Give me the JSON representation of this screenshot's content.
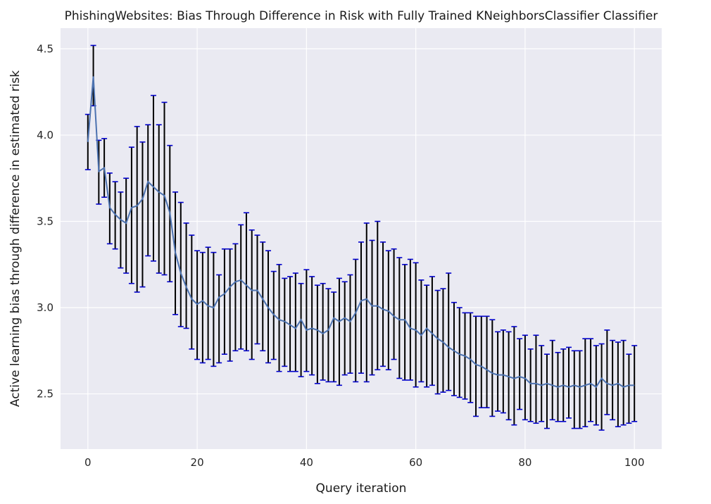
{
  "chart_data": {
    "type": "line",
    "title": "PhishingWebsites: Bias Through Difference in Risk with Fully Trained KNeighborsClassifier Classifier",
    "xlabel": "Query iteration",
    "ylabel": "Active learning bias through difference in estimated risk",
    "xlim": [
      -5,
      105
    ],
    "ylim": [
      2.18,
      4.62
    ],
    "x_ticks": [
      0,
      20,
      40,
      60,
      80,
      100
    ],
    "y_ticks": [
      2.5,
      3.0,
      3.5,
      4.0,
      4.5
    ],
    "x_tick_labels": [
      "0",
      "20",
      "40",
      "60",
      "80",
      "100"
    ],
    "y_tick_labels": [
      "2.5",
      "3.0",
      "3.5",
      "4.0",
      "4.5"
    ],
    "grid": true,
    "legend": "none",
    "colors": {
      "background": "#eaeaf2",
      "grid": "#ffffff",
      "line": "#4c72b0",
      "errorbar": "#000000",
      "caps": "#0000cc"
    },
    "series": [
      {
        "x": [
          0,
          1,
          2,
          3,
          4,
          5,
          6,
          7,
          8,
          9,
          10,
          11,
          12,
          13,
          14,
          15,
          16,
          17,
          18,
          19,
          20,
          21,
          22,
          23,
          24,
          25,
          26,
          27,
          28,
          29,
          30,
          31,
          32,
          33,
          34,
          35,
          36,
          37,
          38,
          39,
          40,
          41,
          42,
          43,
          44,
          45,
          46,
          47,
          48,
          49,
          50,
          51,
          52,
          53,
          54,
          55,
          56,
          57,
          58,
          59,
          60,
          61,
          62,
          63,
          64,
          65,
          66,
          67,
          68,
          69,
          70,
          71,
          72,
          73,
          74,
          75,
          76,
          77,
          78,
          79,
          80,
          81,
          82,
          83,
          84,
          85,
          86,
          87,
          88,
          89,
          90,
          91,
          92,
          93,
          94,
          95,
          96,
          97,
          98,
          99,
          100
        ],
        "y": [
          3.96,
          4.34,
          3.79,
          3.81,
          3.58,
          3.54,
          3.51,
          3.49,
          3.58,
          3.59,
          3.63,
          3.73,
          3.7,
          3.67,
          3.65,
          3.55,
          3.32,
          3.2,
          3.12,
          3.05,
          3.02,
          3.04,
          3.01,
          3.0,
          3.06,
          3.08,
          3.12,
          3.15,
          3.16,
          3.13,
          3.1,
          3.1,
          3.05,
          3.0,
          2.96,
          2.93,
          2.92,
          2.9,
          2.88,
          2.93,
          2.87,
          2.88,
          2.87,
          2.85,
          2.87,
          2.94,
          2.92,
          2.94,
          2.92,
          2.97,
          3.04,
          3.05,
          3.01,
          3.01,
          2.99,
          2.98,
          2.95,
          2.93,
          2.93,
          2.88,
          2.87,
          2.84,
          2.88,
          2.85,
          2.82,
          2.8,
          2.77,
          2.75,
          2.73,
          2.72,
          2.7,
          2.67,
          2.66,
          2.64,
          2.62,
          2.61,
          2.61,
          2.6,
          2.59,
          2.6,
          2.59,
          2.56,
          2.56,
          2.55,
          2.56,
          2.55,
          2.54,
          2.55,
          2.54,
          2.55,
          2.54,
          2.55,
          2.56,
          2.54,
          2.59,
          2.56,
          2.55,
          2.56,
          2.54,
          2.55,
          2.55
        ],
        "lower": [
          3.8,
          4.17,
          3.6,
          3.64,
          3.37,
          3.34,
          3.23,
          3.2,
          3.14,
          3.09,
          3.12,
          3.3,
          3.27,
          3.2,
          3.19,
          3.15,
          2.96,
          2.89,
          2.88,
          2.76,
          2.7,
          2.68,
          2.7,
          2.66,
          2.68,
          2.73,
          2.69,
          2.75,
          2.76,
          2.75,
          2.7,
          2.79,
          2.75,
          2.68,
          2.7,
          2.63,
          2.66,
          2.63,
          2.63,
          2.6,
          2.63,
          2.61,
          2.56,
          2.58,
          2.57,
          2.57,
          2.55,
          2.61,
          2.62,
          2.57,
          2.62,
          2.57,
          2.61,
          2.64,
          2.66,
          2.64,
          2.7,
          2.59,
          2.58,
          2.58,
          2.54,
          2.57,
          2.54,
          2.55,
          2.5,
          2.51,
          2.52,
          2.49,
          2.48,
          2.47,
          2.45,
          2.37,
          2.42,
          2.42,
          2.37,
          2.4,
          2.39,
          2.35,
          2.32,
          2.41,
          2.35,
          2.34,
          2.33,
          2.34,
          2.3,
          2.35,
          2.34,
          2.34,
          2.36,
          2.3,
          2.3,
          2.31,
          2.34,
          2.32,
          2.29,
          2.38,
          2.35,
          2.31,
          2.32,
          2.33,
          2.34
        ],
        "upper": [
          4.12,
          4.52,
          3.97,
          3.98,
          3.78,
          3.73,
          3.67,
          3.75,
          3.93,
          4.05,
          3.96,
          4.06,
          4.23,
          4.06,
          4.19,
          3.94,
          3.67,
          3.61,
          3.49,
          3.42,
          3.33,
          3.32,
          3.35,
          3.32,
          3.19,
          3.34,
          3.34,
          3.37,
          3.48,
          3.55,
          3.45,
          3.42,
          3.38,
          3.33,
          3.21,
          3.25,
          3.17,
          3.18,
          3.2,
          3.14,
          3.22,
          3.18,
          3.13,
          3.14,
          3.11,
          3.09,
          3.17,
          3.15,
          3.19,
          3.28,
          3.38,
          3.49,
          3.39,
          3.5,
          3.38,
          3.33,
          3.34,
          3.29,
          3.25,
          3.28,
          3.26,
          3.16,
          3.13,
          3.18,
          3.1,
          3.11,
          3.2,
          3.03,
          3.0,
          2.97,
          2.97,
          2.95,
          2.95,
          2.95,
          2.93,
          2.86,
          2.87,
          2.86,
          2.89,
          2.82,
          2.84,
          2.76,
          2.84,
          2.78,
          2.73,
          2.81,
          2.74,
          2.76,
          2.77,
          2.75,
          2.75,
          2.82,
          2.82,
          2.78,
          2.79,
          2.87,
          2.81,
          2.8,
          2.81,
          2.73,
          2.78
        ]
      }
    ]
  }
}
